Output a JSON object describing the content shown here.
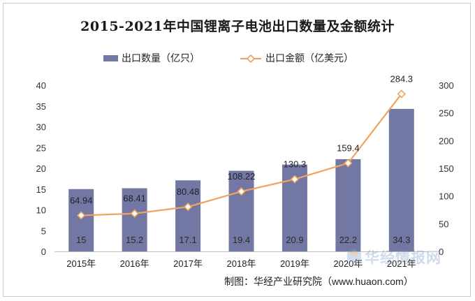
{
  "chart_data": {
    "type": "bar+line",
    "title": "2015-2021年中国锂离子电池出口数量及金额统计",
    "categories": [
      "2015年",
      "2016年",
      "2017年",
      "2018年",
      "2019年",
      "2020年",
      "2021年"
    ],
    "series": [
      {
        "name": "出口数量（亿只）",
        "type": "bar",
        "axis": "left",
        "values": [
          15,
          15.2,
          17.1,
          19.4,
          20.9,
          22.2,
          34.3
        ],
        "labels": [
          "15",
          "15.2",
          "17.1",
          "19.4",
          "20.9",
          "22.2",
          "34.3"
        ],
        "color": "#7278a3"
      },
      {
        "name": "出口金额（亿美元）",
        "type": "line",
        "axis": "right",
        "values": [
          64.94,
          68.41,
          80.48,
          108.22,
          130.3,
          159.4,
          284.3
        ],
        "labels": [
          "64.94",
          "68.41",
          "80.48",
          "108.22",
          "130.3",
          "159.4",
          "284.3"
        ],
        "color": "#f0a35e"
      }
    ],
    "y_left": {
      "min": 0,
      "max": 40,
      "ticks": [
        "0",
        "5",
        "10",
        "15",
        "20",
        "25",
        "30",
        "35",
        "40"
      ]
    },
    "y_right": {
      "min": 0,
      "max": 300,
      "ticks": [
        "0",
        "50",
        "100",
        "150",
        "200",
        "250",
        "300"
      ]
    },
    "legend_position": "top-center",
    "grid": false
  },
  "source": "制图：华经产业研究院（www.huaon.com）",
  "watermark": "华经情报网"
}
